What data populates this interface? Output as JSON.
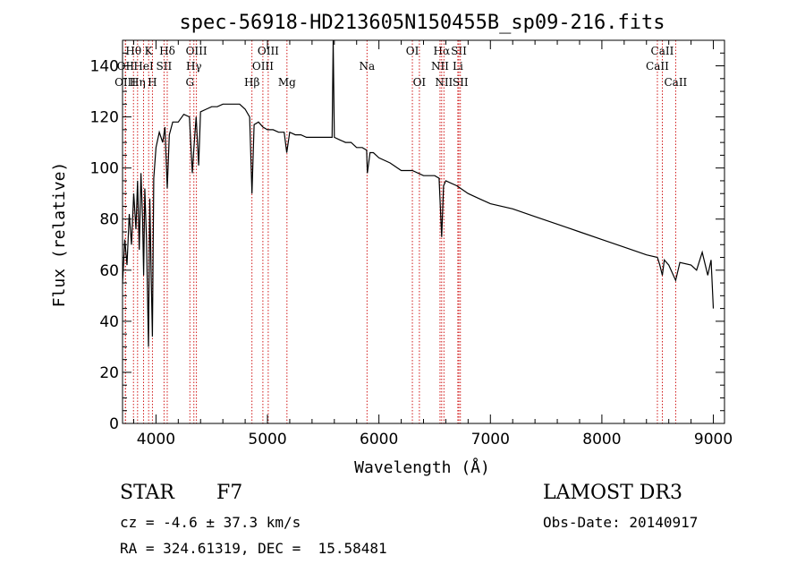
{
  "chart_data": {
    "type": "line",
    "title": "spec-56918-HD213605N150455B_sp09-216.fits",
    "xlabel": "Wavelength (Å)",
    "ylabel": "Flux (relative)",
    "xlim": [
      3700,
      9100
    ],
    "ylim": [
      0,
      150
    ],
    "xticks": [
      4000,
      5000,
      6000,
      7000,
      8000,
      9000
    ],
    "yticks": [
      0,
      20,
      40,
      60,
      80,
      100,
      120,
      140
    ],
    "line_color": "#000000",
    "marker_color": "#cc0000",
    "series": [
      {
        "name": "flux",
        "x": [
          3700,
          3720,
          3740,
          3760,
          3780,
          3800,
          3820,
          3835,
          3850,
          3865,
          3880,
          3889,
          3900,
          3915,
          3933,
          3945,
          3955,
          3968,
          3980,
          4000,
          4030,
          4060,
          4080,
          4101,
          4120,
          4150,
          4200,
          4250,
          4300,
          4326,
          4340,
          4360,
          4383,
          4400,
          4450,
          4500,
          4550,
          4600,
          4650,
          4700,
          4750,
          4800,
          4840,
          4861,
          4880,
          4920,
          4960,
          5000,
          5050,
          5100,
          5150,
          5173,
          5200,
          5250,
          5300,
          5350,
          5400,
          5450,
          5500,
          5550,
          5580,
          5590,
          5600,
          5650,
          5700,
          5750,
          5800,
          5850,
          5890,
          5896,
          5920,
          5950,
          6000,
          6100,
          6200,
          6300,
          6400,
          6500,
          6540,
          6563,
          6580,
          6600,
          6700,
          6800,
          6900,
          7000,
          7200,
          7400,
          7600,
          7800,
          8000,
          8200,
          8400,
          8498,
          8520,
          8542,
          8560,
          8600,
          8662,
          8700,
          8800,
          8850,
          8900,
          8950,
          8980,
          9000
        ],
        "values": [
          55,
          72,
          62,
          82,
          70,
          90,
          76,
          95,
          68,
          98,
          80,
          58,
          92,
          72,
          30,
          88,
          62,
          34,
          96,
          108,
          114,
          110,
          116,
          92,
          113,
          118,
          118,
          121,
          120,
          98,
          108,
          120,
          101,
          122,
          123,
          124,
          124,
          125,
          125,
          125,
          125,
          123,
          120,
          90,
          117,
          118,
          116,
          115,
          115,
          114,
          114,
          106,
          114,
          113,
          113,
          112,
          112,
          112,
          112,
          112,
          112,
          150,
          112,
          111,
          110,
          110,
          108,
          108,
          107,
          98,
          106,
          106,
          104,
          102,
          99,
          99,
          97,
          97,
          96,
          73,
          93,
          95,
          93,
          90,
          88,
          86,
          84,
          81,
          78,
          75,
          72,
          69,
          66,
          65,
          62,
          58,
          64,
          62,
          56,
          63,
          62,
          60,
          67,
          58,
          64,
          45
        ]
      }
    ],
    "line_markers": [
      {
        "label": "Hθ",
        "wavelength": 3798,
        "row": 1
      },
      {
        "label": "OII",
        "wavelength": 3727,
        "row": 2
      },
      {
        "label": "OIII",
        "wavelength": 3725,
        "row": 3
      },
      {
        "label": "K",
        "wavelength": 3934,
        "row": 1
      },
      {
        "label": "HeI",
        "wavelength": 3889,
        "row": 2
      },
      {
        "label": "Hη",
        "wavelength": 3835,
        "row": 3
      },
      {
        "label": "Hδ",
        "wavelength": 4101,
        "row": 1
      },
      {
        "label": "SII",
        "wavelength": 4072,
        "row": 2
      },
      {
        "label": "H",
        "wavelength": 3968,
        "row": 3
      },
      {
        "label": "OIII",
        "wavelength": 4363,
        "row": 1
      },
      {
        "label": "Hγ",
        "wavelength": 4340,
        "row": 2
      },
      {
        "label": "G",
        "wavelength": 4304,
        "row": 3
      },
      {
        "label": "OIII",
        "wavelength": 5007,
        "row": 1
      },
      {
        "label": "OIII",
        "wavelength": 4959,
        "row": 2
      },
      {
        "label": "Hβ",
        "wavelength": 4861,
        "row": 3
      },
      {
        "label": "Mg",
        "wavelength": 5175,
        "row": 3
      },
      {
        "label": "Na",
        "wavelength": 5893,
        "row": 2
      },
      {
        "label": "OI",
        "wavelength": 6300,
        "row": 1
      },
      {
        "label": "OI",
        "wavelength": 6363,
        "row": 3
      },
      {
        "label": "Hα",
        "wavelength": 6563,
        "row": 1
      },
      {
        "label": "NII",
        "wavelength": 6548,
        "row": 2
      },
      {
        "label": "NII",
        "wavelength": 6583,
        "row": 3
      },
      {
        "label": "SII",
        "wavelength": 6717,
        "row": 1
      },
      {
        "label": "Li",
        "wavelength": 6708,
        "row": 2
      },
      {
        "label": "SII",
        "wavelength": 6731,
        "row": 3
      },
      {
        "label": "CaII",
        "wavelength": 8542,
        "row": 1
      },
      {
        "label": "CaII",
        "wavelength": 8498,
        "row": 2
      },
      {
        "label": "CaII",
        "wavelength": 8662,
        "row": 3
      }
    ]
  },
  "info": {
    "class_label": "STAR",
    "subclass": "F7",
    "survey": "LAMOST DR3",
    "redshift": "cz = -4.6 ± 37.3 km/s",
    "obs_date": "Obs-Date: 20140917",
    "coords": "RA = 324.61319, DEC =  15.58481"
  }
}
